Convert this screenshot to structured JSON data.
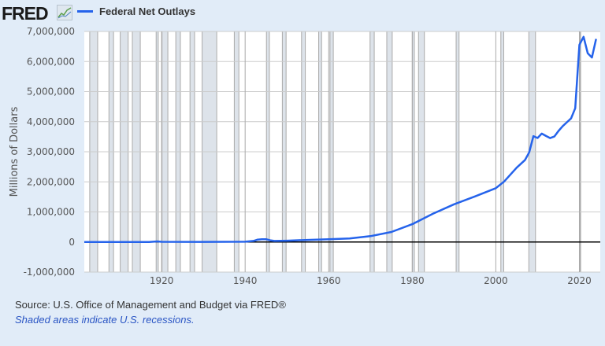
{
  "header": {
    "logo_text": "FRED",
    "legend_label": "Federal Net Outlays"
  },
  "footer": {
    "source": "Source: U.S. Office of Management and Budget via FRED®",
    "note": "Shaded areas indicate U.S. recessions."
  },
  "colors": {
    "series": "#2563eb",
    "recession": "#dde3ea",
    "background": "#e1ecf8"
  },
  "chart_data": {
    "type": "line",
    "title": "",
    "xlabel": "",
    "ylabel": "Millions of Dollars",
    "xlim": [
      1901.5,
      2025
    ],
    "ylim": [
      -1000000,
      7000000
    ],
    "grid": true,
    "legend_placement": "top-left",
    "x_ticks": [
      1920,
      1940,
      1960,
      1980,
      2000,
      2020
    ],
    "y_ticks": [
      -1000000,
      0,
      1000000,
      2000000,
      3000000,
      4000000,
      5000000,
      6000000,
      7000000
    ],
    "y_tick_labels": [
      "-1,000,000",
      "0",
      "1,000,000",
      "2,000,000",
      "3,000,000",
      "4,000,000",
      "5,000,000",
      "6,000,000",
      "7,000,000"
    ],
    "recessions": [
      [
        1902.8,
        1904.7
      ],
      [
        1907.4,
        1908.5
      ],
      [
        1910.1,
        1912
      ],
      [
        1913,
        1914.9
      ],
      [
        1918.7,
        1919.2
      ],
      [
        1920.1,
        1921.5
      ],
      [
        1923.4,
        1924.5
      ],
      [
        1926.8,
        1927.9
      ],
      [
        1929.7,
        1933.2
      ],
      [
        1937.4,
        1938.5
      ],
      [
        1945.1,
        1945.8
      ],
      [
        1948.9,
        1949.8
      ],
      [
        1953.5,
        1954.4
      ],
      [
        1957.6,
        1958.3
      ],
      [
        1960.3,
        1961.1
      ],
      [
        1969.9,
        1970.9
      ],
      [
        1973.9,
        1975.2
      ],
      [
        1980,
        1980.5
      ],
      [
        1981.5,
        1982.9
      ],
      [
        1990.5,
        1991.2
      ],
      [
        2001.2,
        2001.9
      ],
      [
        2007.9,
        2009.5
      ],
      [
        2020.1,
        2020.3
      ]
    ],
    "series": [
      {
        "name": "Federal Net Outlays",
        "x": [
          1901,
          1910,
          1917,
          1919,
          1920,
          1930,
          1940,
          1942,
          1943,
          1944,
          1945,
          1946,
          1947,
          1950,
          1955,
          1960,
          1965,
          1970,
          1975,
          1980,
          1985,
          1990,
          1995,
          2000,
          2002,
          2005,
          2007,
          2008,
          2009,
          2010,
          2011,
          2012,
          2013,
          2014,
          2015,
          2016,
          2017,
          2018,
          2019,
          2020,
          2021,
          2022,
          2023,
          2024
        ],
        "values": [
          525,
          694,
          1954,
          18493,
          6358,
          3320,
          9468,
          35137,
          78555,
          91304,
          92712,
          55232,
          34496,
          42562,
          68444,
          92191,
          118228,
          195649,
          332332,
          590941,
          946344,
          1252993,
          1515742,
          1788950,
          2010894,
          2471957,
          2728686,
          2982544,
          3517677,
          3457079,
          3603065,
          3526563,
          3454881,
          3506284,
          3691850,
          3852616,
          3981630,
          4109042,
          4446960,
          6553603,
          6822470,
          6273259,
          6134672,
          6752000
        ]
      }
    ]
  }
}
